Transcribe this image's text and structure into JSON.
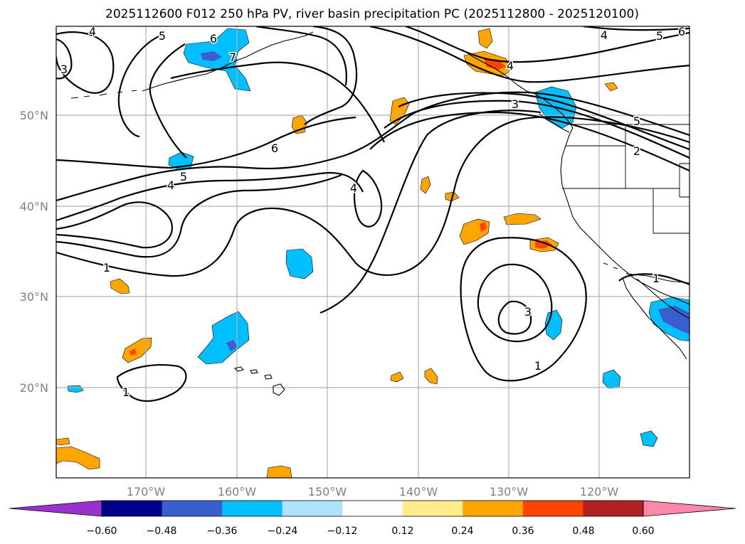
{
  "title": "2025112600 F012 250 hPa PV, river basin precipitation PC (2025112800 - 2025120100)",
  "lat_labels": [
    "50°N",
    "40°N",
    "30°N",
    "20°N"
  ],
  "lon_labels": [
    "170°W",
    "160°W",
    "150°W",
    "140°W",
    "130°W",
    "120°W"
  ],
  "colorbar": {
    "colors": [
      "#9932cc",
      "#00008b",
      "#3a5fcd",
      "#00bfff",
      "#b0e2ff",
      "#ffffff",
      "#ffec8b",
      "#ffa500",
      "#ff4500",
      "#b22222",
      "#ff88aa"
    ],
    "tick_labels": [
      "−0.60",
      "−0.48",
      "−0.36",
      "−0.24",
      "−0.12",
      "0.12",
      "0.24",
      "0.36",
      "0.48",
      "0.60"
    ]
  },
  "pv_contour_labels": [
    "4",
    "5",
    "6",
    "7",
    "3",
    "6",
    "5",
    "4",
    "4",
    "1",
    "1",
    "3",
    "1",
    "3",
    "4",
    "4",
    "5",
    "6",
    "5",
    "2",
    "1"
  ],
  "colors": {
    "negative_strong": "#3a5fcd",
    "negative": "#00bfff",
    "positive": "#ffa500",
    "positive_strong": "#ff4500",
    "grid": "#b0b0b0",
    "axis_labels": "#808080"
  }
}
